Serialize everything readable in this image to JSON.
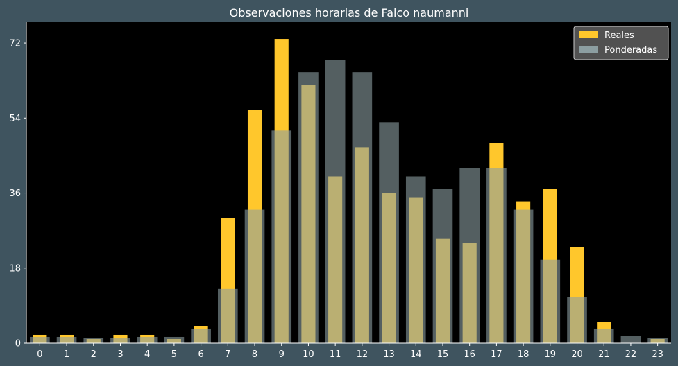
{
  "chart_data": {
    "type": "bar",
    "title": "Observaciones horarias de Falco naumanni",
    "xlabel": "",
    "ylabel": "",
    "categories": [
      "0",
      "1",
      "2",
      "3",
      "4",
      "5",
      "6",
      "7",
      "8",
      "9",
      "10",
      "11",
      "12",
      "13",
      "14",
      "15",
      "16",
      "17",
      "18",
      "19",
      "20",
      "21",
      "22",
      "23"
    ],
    "series": [
      {
        "name": "Reales",
        "color": "#ffc72c",
        "values": [
          2,
          2,
          1,
          2,
          2,
          1,
          4,
          30,
          56,
          73,
          62,
          40,
          47,
          36,
          35,
          25,
          24,
          48,
          34,
          37,
          23,
          5,
          0,
          1
        ]
      },
      {
        "name": "Ponderadas",
        "color": "#8c9ea1",
        "values": [
          1.5,
          1.5,
          1.3,
          1.3,
          1.5,
          1.5,
          3.5,
          13,
          32,
          51,
          65,
          68,
          65,
          53,
          40,
          37,
          42,
          42,
          32,
          20,
          11,
          3.5,
          1.8,
          1.3
        ]
      }
    ],
    "ylim": [
      0,
      77
    ],
    "yticks": [
      0,
      18,
      36,
      54,
      72
    ],
    "grid": false,
    "legend_position": "top-right",
    "background_color": "#000000",
    "figure_color": "#3f545f"
  }
}
